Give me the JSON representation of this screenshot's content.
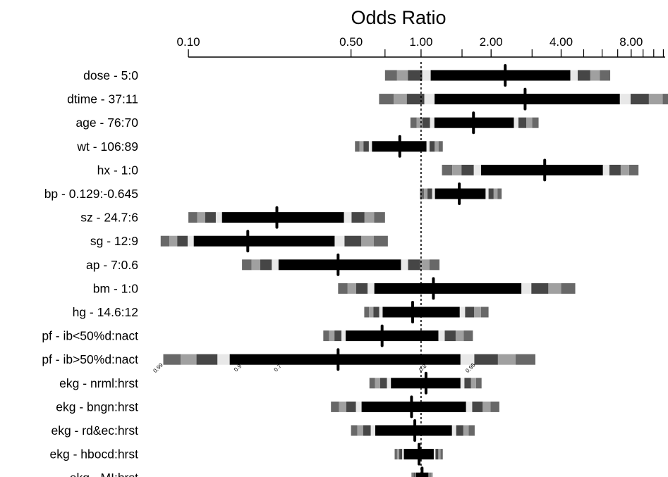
{
  "chart_data": {
    "type": "forest",
    "title": "Odds Ratio",
    "x_scale": "log",
    "xlim": [
      0.073,
      11.2
    ],
    "major_ticks": [
      {
        "value": 0.1,
        "label": "0.10"
      },
      {
        "value": 0.5,
        "label": "0.50"
      },
      {
        "value": 1.0,
        "label": "1.00"
      },
      {
        "value": 2.0,
        "label": "2.00"
      },
      {
        "value": 4.0,
        "label": "4.00"
      },
      {
        "value": 8.0,
        "label": "8.00"
      }
    ],
    "minor_ticks": [
      0.7,
      1.5,
      3.0,
      5.0,
      6.0,
      7.0,
      9.0,
      10.0,
      11.0
    ],
    "reference_line": 1.0,
    "confidence_levels": [
      "0.99",
      "0.9",
      "0.7",
      "0.8",
      "0.95"
    ],
    "confidence_label_positions": [
      {
        "label": "0.99",
        "value": 0.075
      },
      {
        "label": "0.9",
        "value": 0.165
      },
      {
        "label": "0.7",
        "value": 0.245
      },
      {
        "label": "0.8",
        "value": 1.03
      },
      {
        "label": "0.95",
        "value": 1.65
      }
    ],
    "band_shades": [
      "#686868",
      "#a0a0a0",
      "#464646",
      "#e8e8e8",
      "#000000"
    ],
    "rows": [
      {
        "label": "dose - 5:0",
        "estimate": 2.3,
        "lower": 0.7,
        "upper": 6.5
      },
      {
        "label": "dtime - 37:11",
        "estimate": 2.8,
        "lower": 0.66,
        "upper": 12.7
      },
      {
        "label": "age - 76:70",
        "estimate": 1.68,
        "lower": 0.9,
        "upper": 3.2
      },
      {
        "label": "wt - 106:89",
        "estimate": 0.81,
        "lower": 0.52,
        "upper": 1.24
      },
      {
        "label": "hx - 1:0",
        "estimate": 3.4,
        "lower": 1.23,
        "upper": 8.6
      },
      {
        "label": "bp - 0.129:-0.645",
        "estimate": 1.46,
        "lower": 0.99,
        "upper": 2.22
      },
      {
        "label": "sz - 24.7:6",
        "estimate": 0.24,
        "lower": 0.1,
        "upper": 0.7
      },
      {
        "label": "sg - 12:9",
        "estimate": 0.18,
        "lower": 0.076,
        "upper": 0.72
      },
      {
        "label": "ap - 7:0.6",
        "estimate": 0.44,
        "lower": 0.17,
        "upper": 1.2
      },
      {
        "label": "bm - 1:0",
        "estimate": 1.13,
        "lower": 0.44,
        "upper": 4.6
      },
      {
        "label": "hg - 14.6:12",
        "estimate": 0.92,
        "lower": 0.57,
        "upper": 1.95
      },
      {
        "label": "pf - ib<50%d:nact",
        "estimate": 0.68,
        "lower": 0.38,
        "upper": 1.67
      },
      {
        "label": "pf - ib>50%d:nact",
        "estimate": 0.44,
        "lower": 0.078,
        "upper": 3.1
      },
      {
        "label": "ekg - nrml:hrst",
        "estimate": 1.05,
        "lower": 0.6,
        "upper": 1.82
      },
      {
        "label": "ekg - bngn:hrst",
        "estimate": 0.91,
        "lower": 0.41,
        "upper": 2.17
      },
      {
        "label": "ekg - rd&ec:hrst",
        "estimate": 0.94,
        "lower": 0.5,
        "upper": 1.7
      },
      {
        "label": "ekg - hbocd:hrst",
        "estimate": 0.98,
        "lower": 0.77,
        "upper": 1.24
      },
      {
        "label": "ekg - MI:hrst",
        "estimate": 1.01,
        "lower": 0.91,
        "upper": 1.12
      }
    ]
  }
}
